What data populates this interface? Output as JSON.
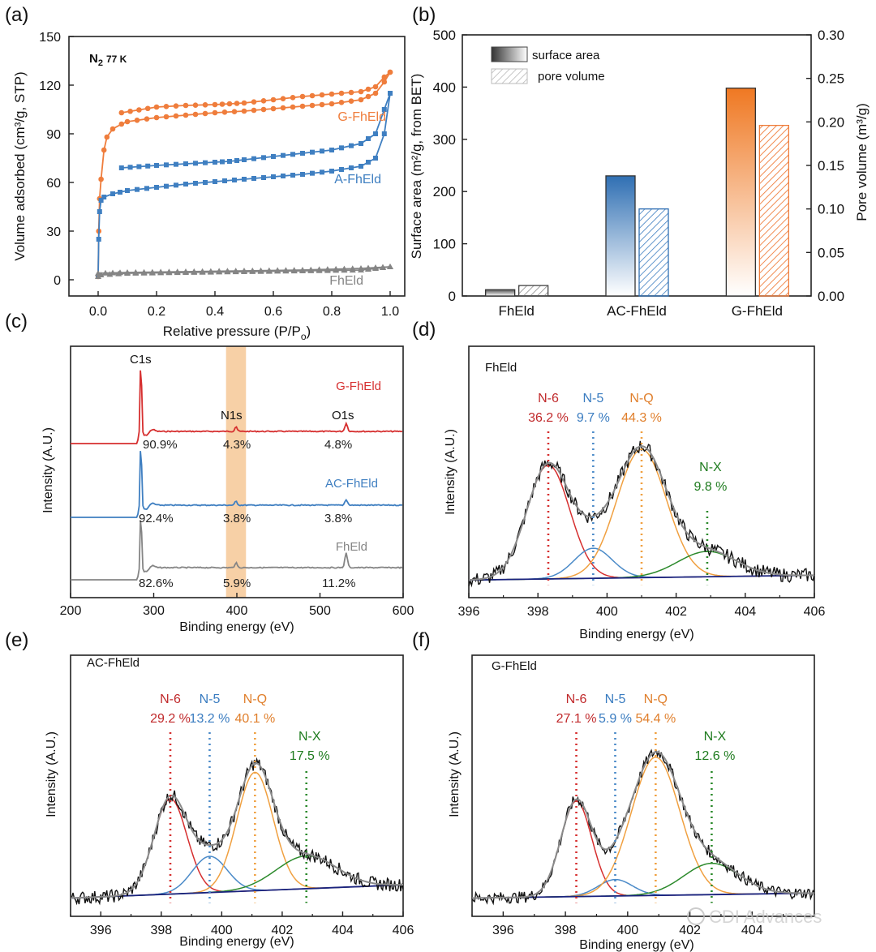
{
  "panels": {
    "a": {
      "label": "(a)",
      "note_main": "N",
      "note_sub": "2",
      "note_rest": "77 K",
      "xlabel_main": "Relative pressure (P/P",
      "xlabel_sub": "o",
      "xlabel_end": ")",
      "ylabel": "Volume adsorbed (cm³/g, STP)"
    },
    "b": {
      "label": "(b)",
      "ylabel_left": "Surface area (m²/g, from BET)",
      "ylabel_right": "Pore volume (m³/g)",
      "legend": [
        "surface area",
        "pore volume"
      ]
    },
    "c": {
      "label": "(c)",
      "xlabel": "Binding energy (eV)",
      "ylabel": "Intensity (A.U.)",
      "peak_labels": [
        "C1s",
        "N1s",
        "O1s"
      ]
    },
    "d": {
      "label": "(d)",
      "sample": "FhEld"
    },
    "e": {
      "label": "(e)",
      "sample": "AC-FhEld"
    },
    "f": {
      "label": "(f)",
      "sample": "G-FhEld"
    },
    "xps_xlabel": "Binding energy (eV)",
    "xps_ylabel": "Intensity (A.U.)"
  },
  "watermark": "CDI Advances",
  "colors": {
    "orange": "#ef7d3c",
    "blue": "#3f7fc1",
    "gray": "#858585",
    "red": "#d62f2f",
    "nq": "#f0a040",
    "n5": "#4a8ac8",
    "green": "#2c8a2c",
    "navy": "#1a237e",
    "nlab_red": "#c0292b",
    "nlab_blue": "#3a7cc0",
    "nlab_orange": "#e07f2c",
    "nlab_green": "#1e7b1e"
  },
  "chart_data": [
    {
      "id": "a",
      "type": "line",
      "xlabel": "Relative pressure (P/Po)",
      "ylabel": "Volume adsorbed (cm3/g, STP)",
      "xlim": [
        -0.1,
        1.05
      ],
      "ylim": [
        -10,
        150
      ],
      "xticks": [
        0.0,
        0.2,
        0.4,
        0.6,
        0.8,
        1.0
      ],
      "yticks": [
        0,
        30,
        60,
        90,
        120,
        150
      ],
      "series": [
        {
          "name": "G-FhEld",
          "color": "#ef7d3c",
          "marker": "circle",
          "adsorption": [
            [
              0.0,
              2
            ],
            [
              0.002,
              30
            ],
            [
              0.005,
              50
            ],
            [
              0.01,
              62
            ],
            [
              0.02,
              80
            ],
            [
              0.03,
              88
            ],
            [
              0.05,
              93
            ],
            [
              0.08,
              96
            ],
            [
              0.1,
              97.5
            ],
            [
              0.2,
              100
            ],
            [
              0.3,
              101.5
            ],
            [
              0.4,
              103
            ],
            [
              0.5,
              104
            ],
            [
              0.6,
              105.5
            ],
            [
              0.7,
              107
            ],
            [
              0.8,
              108.5
            ],
            [
              0.9,
              111
            ],
            [
              0.95,
              115
            ],
            [
              0.98,
              122
            ],
            [
              1.0,
              128
            ]
          ],
          "desorption": [
            [
              1.0,
              128
            ],
            [
              0.98,
              125
            ],
            [
              0.95,
              119
            ],
            [
              0.9,
              116
            ],
            [
              0.8,
              114.5
            ],
            [
              0.7,
              113
            ],
            [
              0.6,
              111
            ],
            [
              0.5,
              109
            ],
            [
              0.45,
              108.5
            ],
            [
              0.4,
              108
            ],
            [
              0.3,
              107.5
            ],
            [
              0.2,
              106.5
            ],
            [
              0.08,
              103
            ]
          ],
          "label": "G-FhEld"
        },
        {
          "name": "A-FhEld",
          "color": "#3f7fc1",
          "marker": "square",
          "adsorption": [
            [
              0.0,
              2
            ],
            [
              0.002,
              25
            ],
            [
              0.005,
              42
            ],
            [
              0.01,
              49
            ],
            [
              0.02,
              51
            ],
            [
              0.05,
              53
            ],
            [
              0.1,
              55
            ],
            [
              0.2,
              57
            ],
            [
              0.3,
              59
            ],
            [
              0.4,
              60.5
            ],
            [
              0.5,
              62
            ],
            [
              0.6,
              63.5
            ],
            [
              0.7,
              65
            ],
            [
              0.8,
              67
            ],
            [
              0.9,
              70
            ],
            [
              0.95,
              75
            ],
            [
              0.98,
              90
            ],
            [
              1.0,
              115
            ]
          ],
          "desorption": [
            [
              1.0,
              115
            ],
            [
              0.98,
              105
            ],
            [
              0.95,
              90
            ],
            [
              0.9,
              84
            ],
            [
              0.8,
              80
            ],
            [
              0.7,
              78
            ],
            [
              0.6,
              76
            ],
            [
              0.5,
              74
            ],
            [
              0.45,
              73
            ],
            [
              0.4,
              72.5
            ],
            [
              0.3,
              71.5
            ],
            [
              0.2,
              70.5
            ],
            [
              0.08,
              69
            ]
          ],
          "label": "A-FhEld"
        },
        {
          "name": "FhEld",
          "color": "#858585",
          "marker": "triangle",
          "adsorption": [
            [
              0.0,
              2
            ],
            [
              0.01,
              3
            ],
            [
              0.1,
              4
            ],
            [
              0.3,
              4.5
            ],
            [
              0.5,
              5
            ],
            [
              0.7,
              5.5
            ],
            [
              0.9,
              6
            ],
            [
              1.0,
              8
            ]
          ],
          "desorption": [
            [
              1.0,
              8
            ],
            [
              0.9,
              7
            ],
            [
              0.7,
              6
            ],
            [
              0.5,
              5.5
            ],
            [
              0.3,
              5
            ],
            [
              0.1,
              4.5
            ],
            [
              0.0,
              4
            ]
          ],
          "label": "FhEld"
        }
      ]
    },
    {
      "id": "b",
      "type": "bar",
      "categories": [
        "FhEld",
        "AC-FhEld",
        "G-FhEld"
      ],
      "ylim_left": [
        0,
        500
      ],
      "ylim_right": [
        0,
        0.3
      ],
      "yticks_left": [
        0,
        100,
        200,
        300,
        400,
        500
      ],
      "yticks_right": [
        0.0,
        0.05,
        0.1,
        0.15,
        0.2,
        0.25,
        0.3
      ],
      "series": [
        {
          "name": "surface area",
          "axis": "left",
          "values": [
            12,
            230,
            398
          ]
        },
        {
          "name": "pore volume",
          "axis": "right",
          "values": [
            0.012,
            0.1,
            0.196
          ]
        }
      ],
      "bar_colors": [
        "#777777",
        "#3f7fc1",
        "#ef7d3c"
      ]
    },
    {
      "id": "c",
      "type": "line",
      "xlabel": "Binding energy (eV)",
      "ylabel": "Intensity (A.U.)",
      "xlim": [
        200,
        600
      ],
      "xticks": [
        200,
        300,
        400,
        500,
        600
      ],
      "highlight_band": [
        387,
        411
      ],
      "series": [
        {
          "name": "G-FhEld",
          "color": "#d62f2f",
          "percentages": [
            "90.9%",
            "4.3%",
            "4.8%"
          ],
          "peaks": {
            "C1s": 95,
            "N1s": 6,
            "O1s": 10
          }
        },
        {
          "name": "AC-FhEld",
          "color": "#3f7fc1",
          "percentages": [
            "92.4%",
            "3.8%",
            "3.8%"
          ],
          "peaks": {
            "C1s": 85,
            "N1s": 5,
            "O1s": 7
          }
        },
        {
          "name": "FhEld",
          "color": "#858585",
          "percentages": [
            "82.6%",
            "5.9%",
            "11.2%"
          ],
          "peaks": {
            "C1s": 75,
            "N1s": 6,
            "O1s": 18
          }
        }
      ]
    },
    {
      "id": "d",
      "type": "line",
      "title": "FhEld",
      "xlabel": "Binding energy (eV)",
      "ylabel": "Intensity (A.U.)",
      "xlim": [
        396,
        406
      ],
      "xticks": [
        396,
        398,
        400,
        402,
        404,
        406
      ],
      "baseline": [
        0.0,
        0.03
      ],
      "components": [
        {
          "name": "N-6",
          "percent": "36.2 %",
          "center": 398.3,
          "height": 0.72,
          "sigma": 0.62,
          "color": "#d62f2f",
          "label_color": "#c0292b"
        },
        {
          "name": "N-5",
          "percent": "9.7 %",
          "center": 399.6,
          "height": 0.19,
          "sigma": 0.55,
          "color": "#4a8ac8",
          "label_color": "#3a7cc0"
        },
        {
          "name": "N-Q",
          "percent": "44.3 %",
          "center": 401.0,
          "height": 0.81,
          "sigma": 0.72,
          "color": "#f0a040",
          "label_color": "#e07f2c"
        },
        {
          "name": "N-X",
          "percent": "9.8 %",
          "center": 402.9,
          "height": 0.16,
          "sigma": 0.85,
          "color": "#2c8a2c",
          "label_color": "#1e7b1e"
        }
      ]
    },
    {
      "id": "e",
      "type": "line",
      "title": "AC-FhEld",
      "xlabel": "Binding energy (eV)",
      "ylabel": "Intensity (A.U.)",
      "xlim": [
        395,
        406
      ],
      "xticks": [
        396,
        398,
        400,
        402,
        404,
        406
      ],
      "baseline": [
        0.0,
        0.08
      ],
      "components": [
        {
          "name": "N-6",
          "percent": "29.2 %",
          "center": 398.3,
          "height": 0.58,
          "sigma": 0.55,
          "color": "#d62f2f",
          "label_color": "#c0292b"
        },
        {
          "name": "N-5",
          "percent": "13.2 %",
          "center": 399.6,
          "height": 0.22,
          "sigma": 0.58,
          "color": "#4a8ac8",
          "label_color": "#3a7cc0"
        },
        {
          "name": "N-Q",
          "percent": "40.1 %",
          "center": 401.1,
          "height": 0.72,
          "sigma": 0.6,
          "color": "#f0a040",
          "label_color": "#e07f2c"
        },
        {
          "name": "N-X",
          "percent": "17.5 %",
          "center": 402.8,
          "height": 0.2,
          "sigma": 1.0,
          "color": "#2c8a2c",
          "label_color": "#1e7b1e"
        }
      ]
    },
    {
      "id": "f",
      "type": "line",
      "title": "G-FhEld",
      "xlabel": "Binding energy (eV)",
      "ylabel": "Intensity (A.U.)",
      "xlim": [
        395,
        406
      ],
      "xticks": [
        396,
        398,
        400,
        402,
        404
      ],
      "baseline": [
        0.0,
        0.03
      ],
      "components": [
        {
          "name": "N-6",
          "percent": "27.1 %",
          "center": 398.35,
          "height": 0.58,
          "sigma": 0.5,
          "color": "#d62f2f",
          "label_color": "#c0292b"
        },
        {
          "name": "N-5",
          "percent": "5.9 %",
          "center": 399.6,
          "height": 0.1,
          "sigma": 0.55,
          "color": "#4a8ac8",
          "label_color": "#3a7cc0"
        },
        {
          "name": "N-Q",
          "percent": "54.4 %",
          "center": 400.9,
          "height": 0.84,
          "sigma": 0.78,
          "color": "#f0a040",
          "label_color": "#e07f2c"
        },
        {
          "name": "N-X",
          "percent": "12.6 %",
          "center": 402.7,
          "height": 0.19,
          "sigma": 0.9,
          "color": "#2c8a2c",
          "label_color": "#1e7b1e"
        }
      ]
    }
  ]
}
